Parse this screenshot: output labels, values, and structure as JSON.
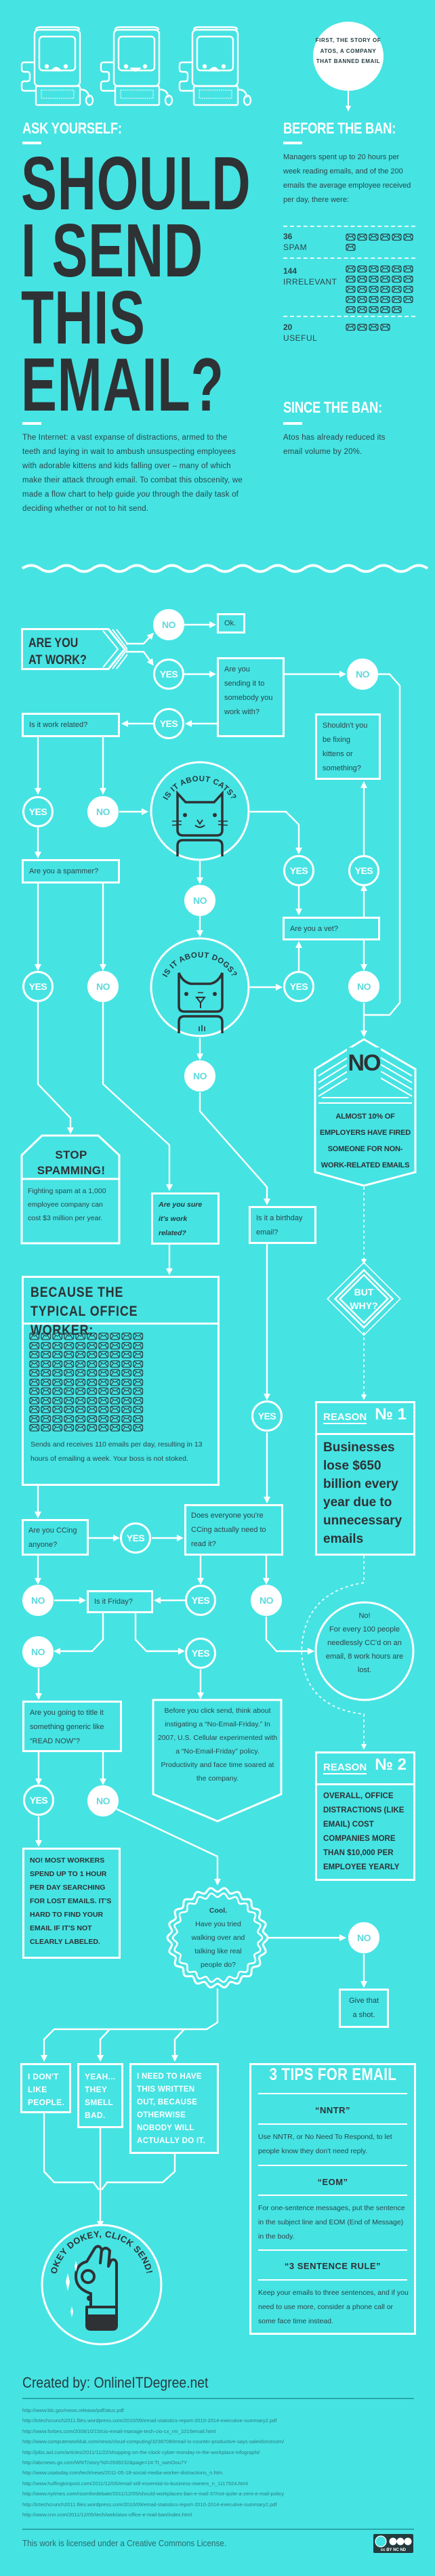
{
  "colors": {
    "background": "#46e3e3",
    "ink": "#2e3234",
    "line": "#ffffff",
    "rule": "#2aa7aa"
  },
  "header": {
    "bubble": "FIRST, THE STORY OF ATOS, A COMPANY THAT BANNED EMAIL",
    "ask": "ASK YOURSELF:",
    "title_lines": [
      "SHOULD",
      "I SEND",
      "THIS",
      "EMAIL?"
    ],
    "intro_before": "The Internet: a vast expanse of distractions, armed to the teeth and laying in wait to ambush unsuspecting employees with adorable kittens and kids falling over – many of which make their attack through email. To combat this obscenity, we made a flow chart to help guide ",
    "intro_em": "you",
    "intro_after": " through the daily task of deciding whether or not to hit send."
  },
  "before_ban": {
    "title": "BEFORE THE BAN:",
    "text": "Managers spent up to 20 hours per week reading emails, and of the 200 emails the average employee received per day, there were:",
    "stats": [
      {
        "number": "36",
        "label": "SPAM",
        "icon_count": 7
      },
      {
        "number": "144",
        "label": "IRRELEVANT",
        "icon_count": 29
      },
      {
        "number": "20",
        "label": "USEFUL",
        "icon_count": 4
      }
    ]
  },
  "since_ban": {
    "title": "SINCE THE BAN:",
    "text": "Atos has already reduced its email volume by 20%."
  },
  "flow": {
    "yes": "YES",
    "no": "NO",
    "start": "ARE YOU AT WORK?",
    "ok": "Ok.",
    "sending": "Are you sending it to somebody you work with?",
    "work_related": "Is it work related?",
    "kittens": "Shouldn't you be fixing kittens or something?",
    "cats": "IS IT ABOUT CATS?",
    "spammer": "Are you a spammer?",
    "vet": "Are you a vet?",
    "dogs": "IS IT ABOUT DOGS?",
    "no_tag": {
      "title": "NO",
      "text": "ALMOST 10% OF EMPLOYERS HAVE FIRED SOMEONE FOR NON-WORK-RELATED EMAILS"
    },
    "stop": {
      "title": "STOP SPAMMING!",
      "text": "Fighting spam at a 1,000 employee company can cost $3 million per year."
    },
    "sure": "Are you sure it's work related?",
    "birthday": "Is it a birthday email?",
    "but_why": "BUT WHY?",
    "because": {
      "title": "BECAUSE THE TYPICAL OFFICE WORKER:",
      "text": "Sends and receives 110 emails per day, resulting in 13 hours of emailing a week. Your boss is not stoked.",
      "email_icons": 110,
      "hours_per_week": 13
    },
    "reason1": {
      "label": "REASON",
      "num": "№ 1",
      "text": "Businesses lose $650 billion every year due to unnecessary emails"
    },
    "ccing": "Are you CCing anyone?",
    "does_everyone": "Does everyone you're CCing actually need to read it?",
    "friday": "Is it Friday?",
    "cc_fact": {
      "title": "No!",
      "text": "For every 100 people needlessly CC'd on an email, 8 work hours are lost."
    },
    "title_q": "Are you going to title it something generic like “READ NOW”?",
    "no_email_friday": "Before you click send, think about instigating a “No-Email-Friday.” In 2007, U.S. Cellular experimented with a “No-Email-Friday” policy. Productivity and face time soared at the company.",
    "reason2": {
      "label": "REASON",
      "num": "№ 2",
      "text": "OVERALL, OFFICE DISTRACTIONS (LIKE EMAIL) COST COMPANIES MORE THAN $10,000 PER EMPLOYEE YEARLY"
    },
    "lost_emails": "NO! MOST WORKERS SPEND UP TO 1 HOUR PER DAY SEARCHING FOR LOST EMAILS. IT'S HARD TO FIND YOUR EMAIL IF IT'S NOT CLEARLY LABELED.",
    "cool": {
      "title": "Cool.",
      "text": "Have you tried walking over and talking like real people do?"
    },
    "shot": "Give that a shot.",
    "excuses": [
      "I DON'T LIKE PEOPLE.",
      "YEAH... THEY SMELL BAD.",
      "I NEED TO HAVE THIS WRITTEN OUT, BECAUSE OTHERWISE NOBODY WILL ACTUALLY DO IT."
    ],
    "send": "OKEY DOKEY, CLICK SEND!"
  },
  "tips": {
    "title": "3 TIPS FOR EMAIL",
    "items": [
      {
        "name": "“NNTR”",
        "text": "Use NNTR, or No Need To Respond, to let people know they don't need reply."
      },
      {
        "name": "“EOM”",
        "text": "For one-sentence messages, put the sentence in the subject line and EOM (End of Message) in the body."
      },
      {
        "name": "“3 SENTENCE RULE”",
        "text": "Keep your emails to three sentences, and if you need to use more, consider a phone call or some face time instead."
      }
    ]
  },
  "footer": {
    "created_by": "Created by: OnlineITDegree.net",
    "sources": [
      "http://www.bls.gov/news.release/pdf/atus.pdf",
      "http://tctechcrunch2011.files.wordpress.com/2010/09/email-statistics-report-2010-2014-executive-summary2.pdf",
      "http://www.forbes.com/2008/10/15/cio-email-manage-tech-cio-cx_rm_1015email.html",
      "http://www.computerworlduk.com/news/cloud-computing/3238708/email-is-counter-productive-says-salesforcecom/",
      "http://jobs.aol.com/articles/2011/11/22/shopping-on-the-clock-cyber-monday-in-the-workplace-infographi/",
      "http://abcnews.go.com/WNT/story?id=2939232&page=1#.Tt_swnOou7Y",
      "http://www.usatoday.com/tech/news/2011-05-18-social-media-worker-distractions_n.htm",
      "http://www.huffingtonpost.com/2011/12/05/email-still-essential-to-business-owners_n_1117924.html",
      "http://www.nytimes.com/roomfordebate/2011/12/05/should-workplaces-ban-e-mail-37/not-quite-a-zero-e-mail-policy",
      "http://tctechcrunch2011.files.wordpress.com/2010/09/email-statistics-report-2010-2014-executive-summary2.pdf",
      "http://www.cnn.com/2011/12/05/tech/web/atos-office-e-mail-ban/index.html"
    ],
    "license": "This work is licensed under a Creative Commons License.",
    "cc_badge": "cc BY NC ND"
  }
}
